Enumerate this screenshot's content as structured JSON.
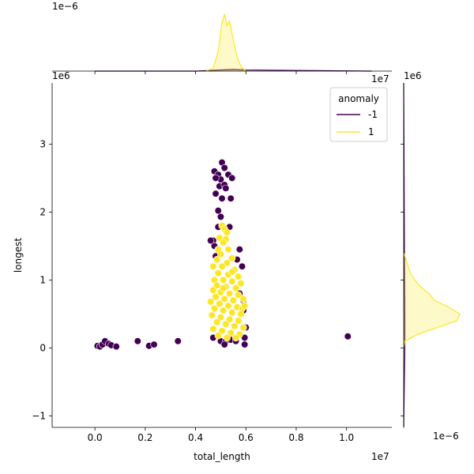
{
  "chart_data": {
    "type": "scatter",
    "title": "",
    "xlabel": "total_length",
    "ylabel": "longest",
    "x_offset_label": "1e7",
    "y_offset_label": "1e6",
    "top_marginal_offset_label": "1e−6",
    "right_marginal_offset_label": "1e6",
    "right_marginal_density_offset_label": "1e−6",
    "x_scale": 10000000,
    "y_scale": 1000000,
    "xlim": [
      -0.17,
      1.18
    ],
    "ylim": [
      -1.17,
      3.9
    ],
    "x_ticks": [
      0.0,
      0.2,
      0.4,
      0.6,
      0.8,
      1.0
    ],
    "x_tick_labels": [
      "0.0",
      "0.2",
      "0.4",
      "0.6",
      "0.8",
      "1.0"
    ],
    "y_ticks": [
      -1,
      0,
      1,
      2,
      3
    ],
    "y_tick_labels": [
      "−1",
      "0",
      "1",
      "2",
      "3"
    ],
    "grid": false,
    "legend": {
      "title": "anomaly",
      "placement": "top-right",
      "entries": [
        {
          "label": "-1",
          "color": "#440154"
        },
        {
          "label": "1",
          "color": "#fde725"
        }
      ]
    },
    "series": [
      {
        "name": "-1",
        "color": "#440154",
        "points": [
          [
            0.01,
            0.03
          ],
          [
            0.02,
            0.02
          ],
          [
            0.03,
            0.05
          ],
          [
            0.04,
            0.1
          ],
          [
            0.055,
            0.06
          ],
          [
            0.065,
            0.04
          ],
          [
            0.085,
            0.02
          ],
          [
            0.17,
            0.1
          ],
          [
            0.215,
            0.03
          ],
          [
            0.235,
            0.05
          ],
          [
            0.33,
            0.1
          ],
          [
            1.005,
            0.17
          ],
          [
            0.475,
            2.6
          ],
          [
            0.49,
            2.55
          ],
          [
            0.505,
            2.73
          ],
          [
            0.515,
            2.65
          ],
          [
            0.53,
            2.55
          ],
          [
            0.545,
            2.5
          ],
          [
            0.5,
            2.48
          ],
          [
            0.48,
            2.5
          ],
          [
            0.495,
            2.38
          ],
          [
            0.515,
            2.4
          ],
          [
            0.52,
            2.35
          ],
          [
            0.48,
            2.27
          ],
          [
            0.505,
            2.2
          ],
          [
            0.54,
            2.2
          ],
          [
            0.49,
            2.02
          ],
          [
            0.5,
            1.93
          ],
          [
            0.535,
            1.78
          ],
          [
            0.49,
            1.78
          ],
          [
            0.47,
            1.58
          ],
          [
            0.46,
            1.58
          ],
          [
            0.475,
            1.5
          ],
          [
            0.575,
            1.45
          ],
          [
            0.565,
            1.3
          ],
          [
            0.585,
            1.2
          ],
          [
            0.48,
            1.35
          ],
          [
            0.575,
            0.8
          ],
          [
            0.59,
            0.7
          ],
          [
            0.59,
            0.55
          ],
          [
            0.6,
            0.3
          ],
          [
            0.595,
            0.15
          ],
          [
            0.595,
            0.05
          ],
          [
            0.47,
            0.15
          ],
          [
            0.5,
            0.1
          ],
          [
            0.52,
            0.1
          ],
          [
            0.54,
            0.12
          ],
          [
            0.56,
            0.1
          ],
          [
            0.515,
            0.05
          ]
        ]
      },
      {
        "name": "1",
        "color": "#fde725",
        "points": [
          [
            0.505,
            1.8
          ],
          [
            0.515,
            1.75
          ],
          [
            0.525,
            1.7
          ],
          [
            0.495,
            1.62
          ],
          [
            0.52,
            1.6
          ],
          [
            0.51,
            1.55
          ],
          [
            0.49,
            1.45
          ],
          [
            0.53,
            1.45
          ],
          [
            0.5,
            1.38
          ],
          [
            0.545,
            1.32
          ],
          [
            0.485,
            1.3
          ],
          [
            0.525,
            1.25
          ],
          [
            0.47,
            1.2
          ],
          [
            0.505,
            1.2
          ],
          [
            0.555,
            1.15
          ],
          [
            0.49,
            1.1
          ],
          [
            0.53,
            1.08
          ],
          [
            0.57,
            1.05
          ],
          [
            0.475,
            1.0
          ],
          [
            0.51,
            1.0
          ],
          [
            0.545,
            0.98
          ],
          [
            0.58,
            0.95
          ],
          [
            0.485,
            0.92
          ],
          [
            0.52,
            0.9
          ],
          [
            0.56,
            0.88
          ],
          [
            0.47,
            0.85
          ],
          [
            0.5,
            0.82
          ],
          [
            0.535,
            0.8
          ],
          [
            0.57,
            0.78
          ],
          [
            0.59,
            0.72
          ],
          [
            0.48,
            0.75
          ],
          [
            0.515,
            0.72
          ],
          [
            0.55,
            0.7
          ],
          [
            0.46,
            0.68
          ],
          [
            0.495,
            0.65
          ],
          [
            0.53,
            0.62
          ],
          [
            0.565,
            0.6
          ],
          [
            0.585,
            0.58
          ],
          [
            0.475,
            0.58
          ],
          [
            0.51,
            0.55
          ],
          [
            0.545,
            0.52
          ],
          [
            0.58,
            0.5
          ],
          [
            0.465,
            0.48
          ],
          [
            0.5,
            0.45
          ],
          [
            0.535,
            0.42
          ],
          [
            0.57,
            0.4
          ],
          [
            0.485,
            0.38
          ],
          [
            0.52,
            0.35
          ],
          [
            0.555,
            0.32
          ],
          [
            0.59,
            0.3
          ],
          [
            0.47,
            0.28
          ],
          [
            0.505,
            0.25
          ],
          [
            0.54,
            0.22
          ],
          [
            0.575,
            0.2
          ],
          [
            0.49,
            0.18
          ],
          [
            0.525,
            0.15
          ],
          [
            0.56,
            0.15
          ],
          [
            0.595,
            0.62
          ],
          [
            0.51,
            0.88
          ],
          [
            0.545,
            1.12
          ]
        ]
      }
    ],
    "top_marginal": {
      "series": [
        {
          "name": "-1",
          "color": "#440154",
          "x": [
            0.0,
            0.4,
            0.5,
            0.55,
            0.6,
            1.1
          ],
          "density": [
            0.0,
            0.0,
            0.02,
            0.03,
            0.02,
            0.0
          ]
        },
        {
          "name": "1",
          "color": "#fde725",
          "x": [
            0.44,
            0.47,
            0.49,
            0.505,
            0.515,
            0.525,
            0.535,
            0.55,
            0.565,
            0.58,
            0.6
          ],
          "density": [
            0.0,
            0.05,
            0.35,
            0.85,
            1.0,
            0.8,
            0.88,
            0.55,
            0.25,
            0.08,
            0.0
          ]
        }
      ]
    },
    "right_marginal": {
      "series": [
        {
          "name": "-1",
          "color": "#440154",
          "y": [
            -1.17,
            0.0,
            0.5,
            1.0,
            2.0,
            3.0,
            3.9
          ],
          "density": [
            0.0,
            0.02,
            0.02,
            0.015,
            0.01,
            0.005,
            0.0
          ]
        },
        {
          "name": "1",
          "color": "#fde725",
          "y": [
            0.0,
            0.1,
            0.2,
            0.3,
            0.4,
            0.5,
            0.6,
            0.7,
            0.8,
            0.9,
            1.0,
            1.1,
            1.2,
            1.4
          ],
          "density": [
            0.0,
            0.02,
            0.25,
            0.6,
            0.95,
            1.0,
            0.8,
            0.55,
            0.45,
            0.3,
            0.2,
            0.12,
            0.08,
            0.0
          ]
        }
      ]
    }
  }
}
